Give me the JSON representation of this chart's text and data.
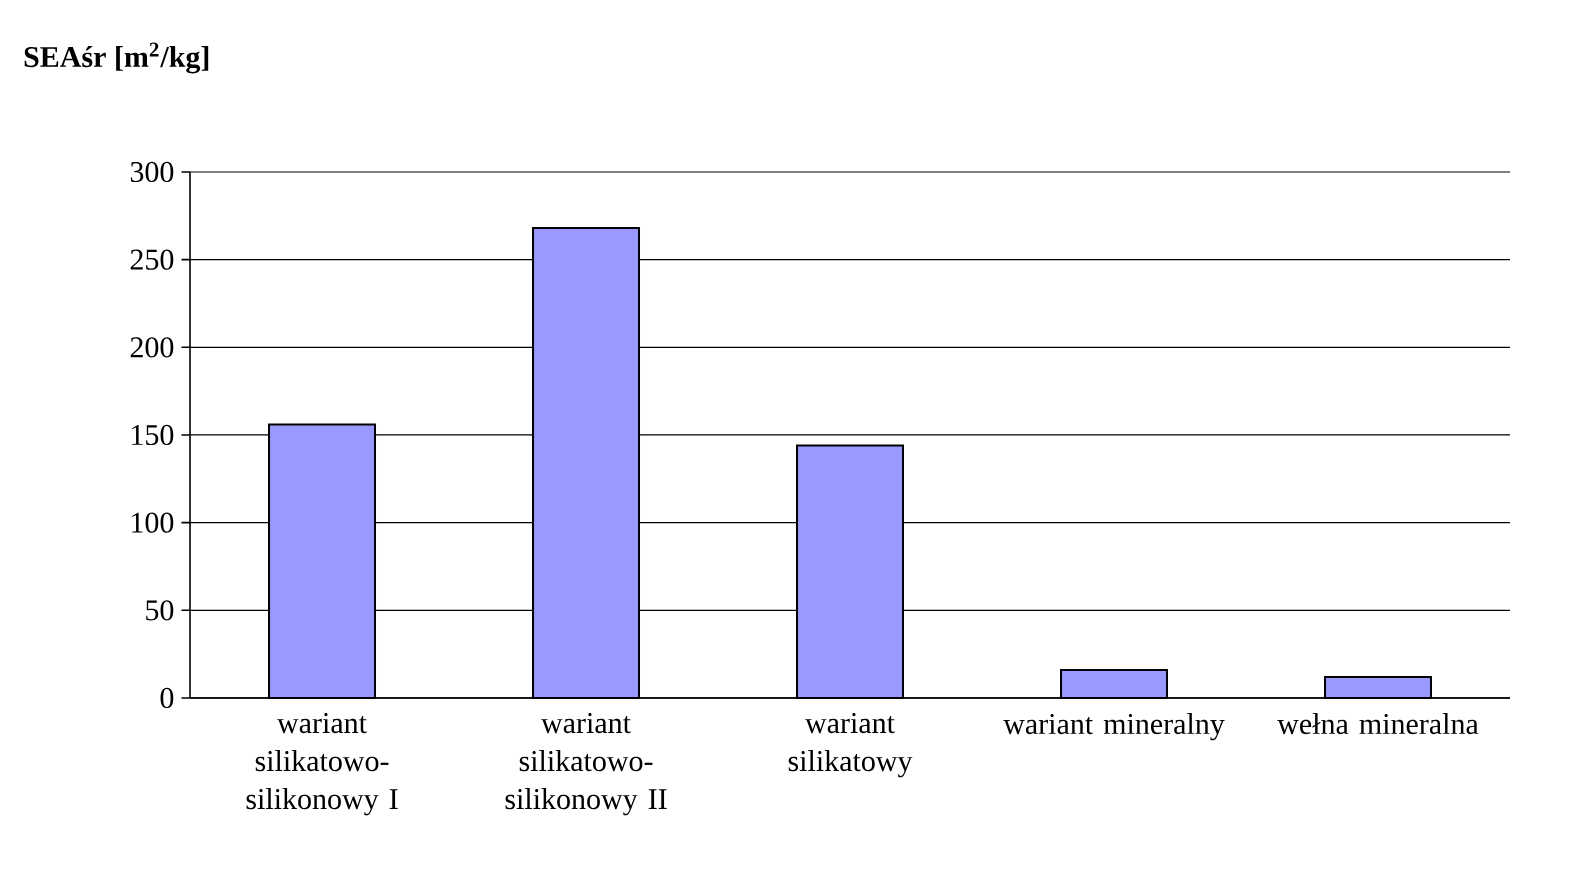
{
  "chart_data": {
    "type": "bar",
    "ylabel": "SEAśr [m$^{2}$/kg]",
    "categories": [
      "wariant silikatowo-silikonowy I",
      "wariant silikatowo-silikonowy II",
      "wariant silikatowy",
      "wariant mineralny",
      "wełna mineralna"
    ],
    "values": [
      156,
      268,
      144,
      16,
      12
    ],
    "color": "#9999ff",
    "ylim": [
      0,
      300
    ],
    "yticks": [
      0,
      50,
      100,
      150,
      200,
      250,
      300
    ],
    "grid": "y"
  }
}
